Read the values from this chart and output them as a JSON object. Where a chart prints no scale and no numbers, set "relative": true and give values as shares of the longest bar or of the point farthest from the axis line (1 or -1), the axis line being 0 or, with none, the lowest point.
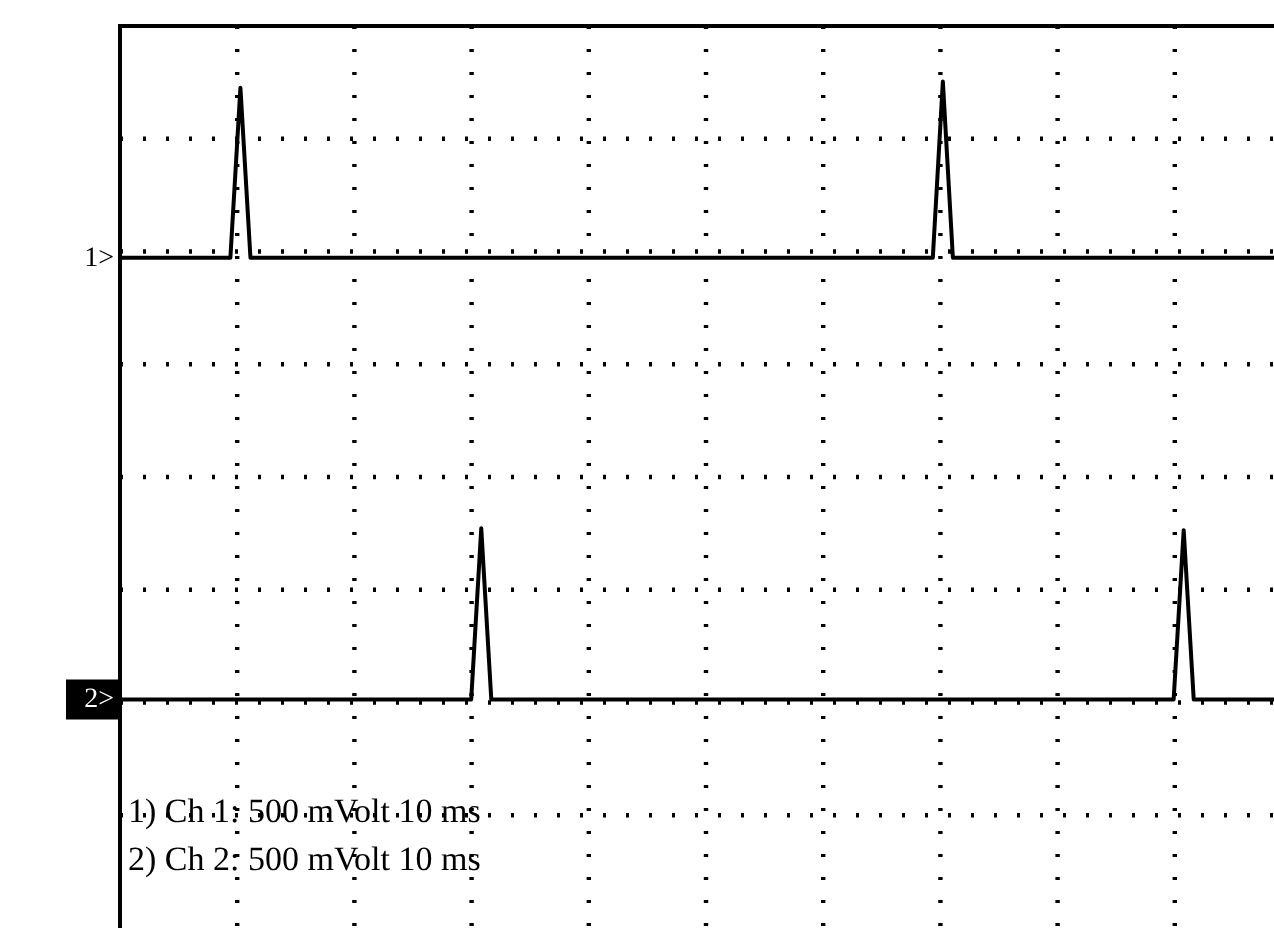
{
  "chart_data": {
    "type": "line",
    "relative": true,
    "grid": true,
    "categories": [
      null,
      null,
      null,
      null,
      null,
      null,
      null,
      null,
      null,
      null,
      null,
      null,
      null,
      null,
      null,
      null,
      null,
      null,
      null,
      null,
      null,
      null,
      null,
      null,
      null,
      null,
      null,
      null,
      null,
      null,
      null,
      null,
      null,
      null,
      null,
      null,
      null,
      null,
      null,
      null,
      null,
      null,
      null,
      null,
      null,
      null,
      null,
      null,
      null,
      null,
      null,
      null,
      null,
      null,
      null,
      null,
      null,
      null,
      null,
      null,
      null,
      null,
      null,
      null,
      null,
      null,
      null,
      null,
      null,
      null,
      null,
      null,
      null,
      null,
      null,
      null,
      null,
      null,
      null,
      null,
      null,
      null,
      null,
      null,
      null,
      null,
      null,
      null,
      null,
      null,
      null,
      null,
      null,
      null,
      null,
      null,
      null,
      null,
      null,
      null,
      null,
      null,
      null,
      null,
      null,
      null,
      null,
      null,
      null,
      null,
      null,
      null,
      null,
      null,
      null,
      null
    ],
    "series": [
      {
        "name": "1>",
        "color": "#000000",
        "values": [
          0.715,
          0.715,
          0.715,
          0.715,
          0.715,
          0.715,
          0.715,
          0.715,
          0.715,
          0.715,
          0.715,
          0.715,
          0.99,
          0.715,
          0.715,
          0.715,
          0.715,
          0.715,
          0.715,
          0.715,
          0.715,
          0.715,
          0.715,
          0.715,
          0.715,
          0.715,
          0.715,
          0.715,
          0.715,
          0.715,
          0.715,
          0.715,
          0.715,
          0.715,
          0.715,
          0.715,
          0.715,
          0.715,
          0.715,
          0.715,
          0.715,
          0.715,
          0.715,
          0.715,
          0.715,
          0.715,
          0.715,
          0.715,
          0.715,
          0.715,
          0.715,
          0.715,
          0.715,
          0.715,
          0.715,
          0.715,
          0.715,
          0.715,
          0.715,
          0.715,
          0.715,
          0.715,
          0.715,
          0.715,
          0.715,
          0.715,
          0.715,
          0.715,
          0.715,
          0.715,
          0.715,
          0.715,
          0.715,
          0.715,
          0.715,
          0.715,
          0.715,
          0.715,
          0.715,
          0.715,
          0.715,
          0.715,
          1,
          0.715,
          0.715,
          0.715,
          0.715,
          0.715,
          0.715,
          0.715,
          0.715,
          0.715,
          0.715,
          0.715,
          0.715,
          0.715,
          0.715,
          0.715,
          0.715,
          0.715,
          0.715,
          0.715,
          0.715,
          0.715,
          0.715,
          0.715,
          0.715,
          0.715,
          0.715,
          0.715,
          0.715,
          0.715,
          0.715,
          0.715,
          0.715,
          0.715
        ]
      },
      {
        "name": "2>",
        "color": "#000000",
        "values": [
          0,
          0,
          0,
          0,
          0,
          0,
          0,
          0,
          0,
          0,
          0,
          0,
          0,
          0,
          0,
          0,
          0,
          0,
          0,
          0,
          0,
          0,
          0,
          0,
          0,
          0,
          0,
          0,
          0,
          0,
          0,
          0,
          0,
          0,
          0,
          0,
          0.277,
          0,
          0,
          0,
          0,
          0,
          0,
          0,
          0,
          0,
          0,
          0,
          0,
          0,
          0,
          0,
          0,
          0,
          0,
          0,
          0,
          0,
          0,
          0,
          0,
          0,
          0,
          0,
          0,
          0,
          0,
          0,
          0,
          0,
          0,
          0,
          0,
          0,
          0,
          0,
          0,
          0,
          0,
          0,
          0,
          0,
          0,
          0,
          0,
          0,
          0,
          0,
          0,
          0,
          0,
          0,
          0,
          0,
          0,
          0,
          0,
          0,
          0,
          0,
          0,
          0,
          0,
          0,
          0,
          0,
          0.274,
          0,
          0,
          0,
          0,
          0,
          0,
          0,
          0,
          0
        ]
      }
    ],
    "annotations": [
      "1) Ch 1:   500 mVolt  10 ms",
      "2) Ch 2:   500 mVolt  10 ms"
    ]
  }
}
